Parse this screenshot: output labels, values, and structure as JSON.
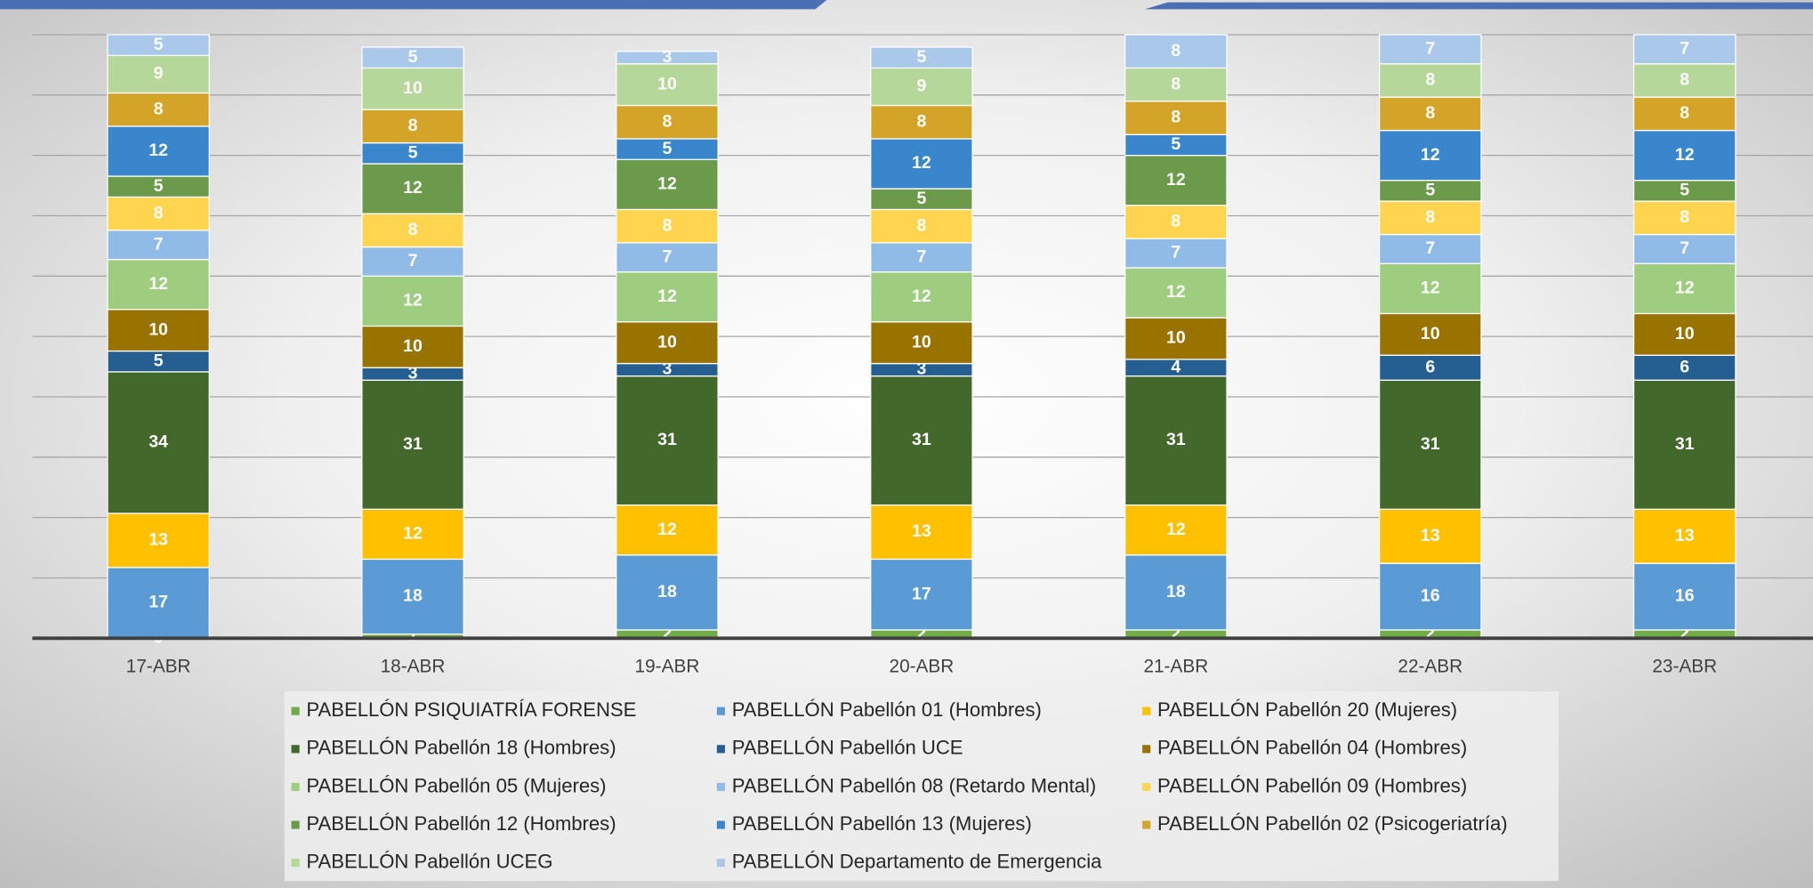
{
  "chart_data": {
    "type": "stacked_bar",
    "categories": [
      "17-ABR",
      "18-ABR",
      "19-ABR",
      "20-ABR",
      "21-ABR",
      "22-ABR",
      "23-ABR"
    ],
    "series": [
      {
        "name": "PABELLÓN PSIQUIATRÍA FORENSE",
        "color": "#70ad47",
        "values": [
          0,
          1,
          2,
          2,
          2,
          2,
          2
        ]
      },
      {
        "name": "PABELLÓN Pabellón 01 (Hombres)",
        "color": "#5b9bd5",
        "values": [
          17,
          18,
          18,
          17,
          18,
          16,
          16
        ]
      },
      {
        "name": "PABELLÓN Pabellón 20 (Mujeres)",
        "color": "#ffc000",
        "values": [
          13,
          12,
          12,
          13,
          12,
          13,
          13
        ]
      },
      {
        "name": "PABELLÓN Pabellón 18 (Hombres)",
        "color": "#43682b",
        "values": [
          34,
          31,
          31,
          31,
          31,
          31,
          31
        ]
      },
      {
        "name": "PABELLÓN Pabellón UCE",
        "color": "#255e91",
        "values": [
          5,
          3,
          3,
          3,
          4,
          6,
          6
        ]
      },
      {
        "name": "PABELLÓN Pabellón 04 (Hombres)",
        "color": "#997300",
        "values": [
          10,
          10,
          10,
          10,
          10,
          10,
          10
        ]
      },
      {
        "name": "PABELLÓN Pabellón 05 (Mujeres)",
        "color": "#9fcd7f",
        "values": [
          12,
          12,
          12,
          12,
          12,
          12,
          12
        ]
      },
      {
        "name": "PABELLÓN Pabellón 08 (Retardo Mental)",
        "color": "#8fbbe6",
        "values": [
          7,
          7,
          7,
          7,
          7,
          7,
          7
        ]
      },
      {
        "name": "PABELLÓN Pabellón 09 (Hombres)",
        "color": "#ffd54f",
        "values": [
          8,
          8,
          8,
          8,
          8,
          8,
          8
        ]
      },
      {
        "name": "PABELLÓN Pabellón 12 (Hombres)",
        "color": "#6a9a4a",
        "values": [
          5,
          12,
          12,
          5,
          12,
          5,
          5
        ]
      },
      {
        "name": "PABELLÓN Pabellón 13 (Mujeres)",
        "color": "#3a86cc",
        "values": [
          12,
          5,
          5,
          12,
          5,
          12,
          12
        ]
      },
      {
        "name": "PABELLÓN Pabellón 02 (Psicogeriatría)",
        "color": "#d4a428",
        "values": [
          8,
          8,
          8,
          8,
          8,
          8,
          8
        ]
      },
      {
        "name": "PABELLÓN Pabellón UCEG",
        "color": "#b5d89a",
        "values": [
          9,
          10,
          10,
          9,
          8,
          8,
          8
        ]
      },
      {
        "name": "PABELLÓN Departamento de Emergencia",
        "color": "#a9c8ea",
        "values": [
          5,
          5,
          3,
          5,
          8,
          7,
          7
        ]
      }
    ],
    "ylim": [
      0,
      145
    ],
    "yticks": [
      0,
      14.5,
      29,
      43.5,
      58,
      72.5,
      87,
      101.5,
      116,
      130.5,
      145
    ],
    "grid": true,
    "legend": "bottom"
  }
}
